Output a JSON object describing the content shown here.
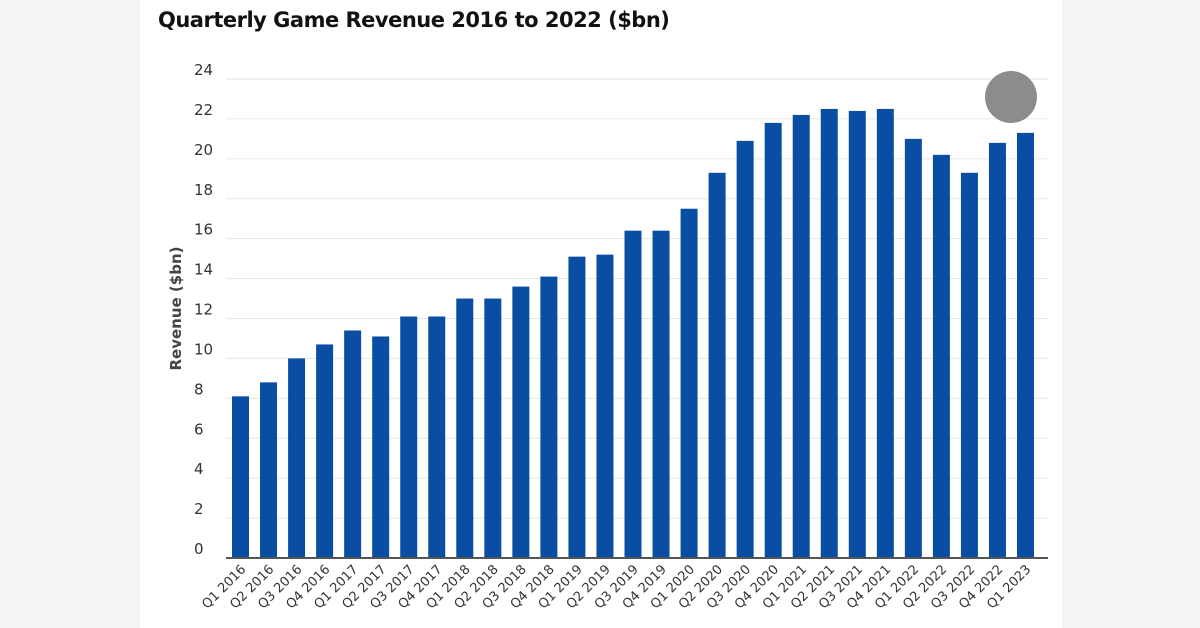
{
  "chart_data": {
    "type": "bar",
    "title": "Quarterly Game Revenue 2016 to 2022 ($bn)",
    "xlabel": "",
    "ylabel": "Revenue ($bn)",
    "ylim": [
      0,
      24
    ],
    "yticks": [
      0,
      2,
      4,
      6,
      8,
      10,
      12,
      14,
      16,
      18,
      20,
      22,
      24
    ],
    "grid": true,
    "categories": [
      "Q1 2016",
      "Q2 2016",
      "Q3 2016",
      "Q4 2016",
      "Q1 2017",
      "Q2 2017",
      "Q3 2017",
      "Q4 2017",
      "Q1 2018",
      "Q2 2018",
      "Q3 2018",
      "Q4 2018",
      "Q1 2019",
      "Q2 2019",
      "Q3 2019",
      "Q4 2019",
      "Q1 2020",
      "Q2 2020",
      "Q3 2020",
      "Q4 2020",
      "Q1 2021",
      "Q2 2021",
      "Q3 2021",
      "Q4 2021",
      "Q1 2022",
      "Q2 2022",
      "Q3 2022",
      "Q4 2022",
      "Q1 2023"
    ],
    "values": [
      8.1,
      8.8,
      10.0,
      10.7,
      11.4,
      11.1,
      12.1,
      12.1,
      13.0,
      13.0,
      13.6,
      14.1,
      15.1,
      15.2,
      16.4,
      16.4,
      17.5,
      19.3,
      20.9,
      21.8,
      22.2,
      22.5,
      22.4,
      22.5,
      21.0,
      20.2,
      19.3,
      20.8,
      21.3
    ],
    "colors": {
      "bar": "#0a4ea3",
      "grid": "#e6e6e6",
      "axis": "#555555",
      "marker": "#8c8c8c"
    }
  }
}
